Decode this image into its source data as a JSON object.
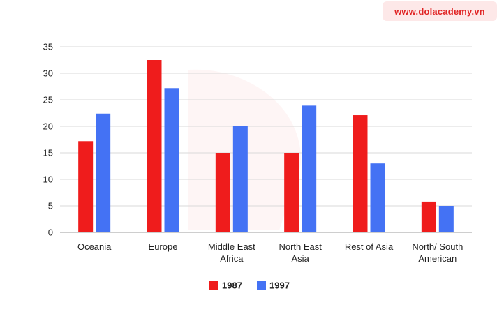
{
  "watermark": {
    "text": "www.dolacademy.vn"
  },
  "chart_data": {
    "type": "bar",
    "categories": [
      [
        "Oceania"
      ],
      [
        "Europe"
      ],
      [
        "Middle East",
        "Africa"
      ],
      [
        "North East",
        "Asia"
      ],
      [
        "Rest of Asia"
      ],
      [
        "North/ South",
        "American"
      ]
    ],
    "series": [
      {
        "name": "1987",
        "color": "#ef1c1c",
        "values": [
          17.2,
          32.5,
          15,
          15,
          22.1,
          5.8
        ]
      },
      {
        "name": "1997",
        "color": "#4472f4",
        "values": [
          22.4,
          27.2,
          20,
          23.9,
          13,
          5
        ]
      }
    ],
    "ylim": [
      0,
      35
    ],
    "yticks": [
      0,
      5,
      10,
      15,
      20,
      25,
      30,
      35
    ],
    "grid": true,
    "legend": "bottom-center"
  }
}
